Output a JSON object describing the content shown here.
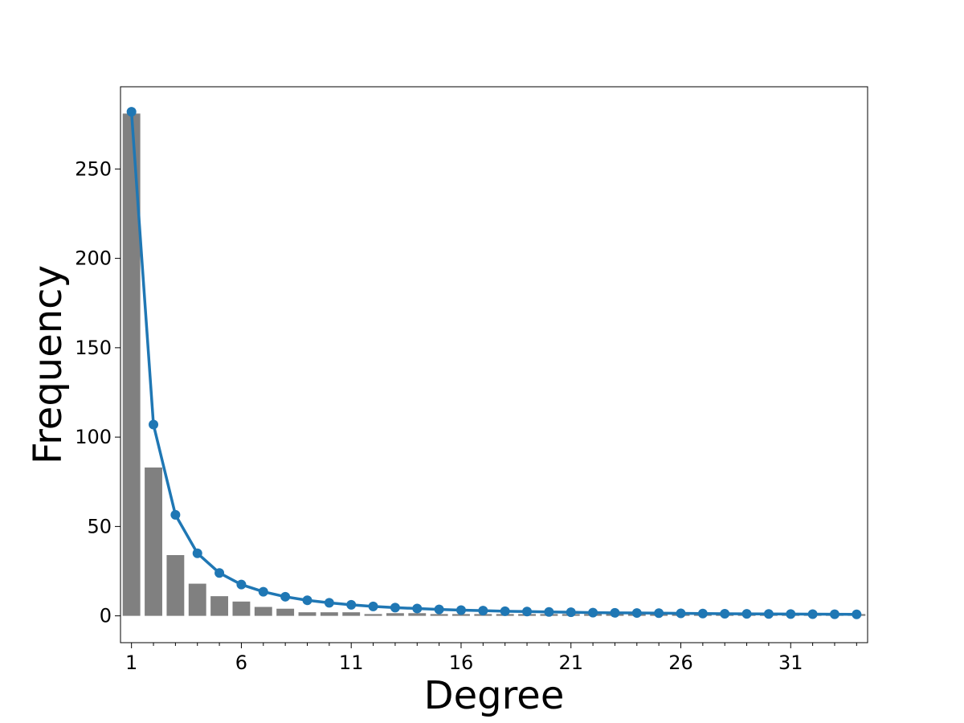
{
  "chart_data": {
    "type": "bar",
    "title": "",
    "xlabel": "Degree",
    "ylabel": "Frequency",
    "x": [
      1,
      2,
      3,
      4,
      5,
      6,
      7,
      8,
      9,
      10,
      11,
      12,
      13,
      14,
      15,
      16,
      17,
      18,
      19,
      20,
      21,
      22,
      23,
      24,
      25,
      26,
      27,
      28,
      29,
      30,
      31,
      32,
      33,
      34
    ],
    "xlim": [
      0.5,
      34.5
    ],
    "ylim": [
      -15,
      296
    ],
    "xticks": [
      1,
      6,
      11,
      16,
      21,
      26,
      31
    ],
    "xtick_labels": [
      "1",
      "6",
      "11",
      "16",
      "21",
      "26",
      "31"
    ],
    "yticks": [
      0,
      50,
      100,
      150,
      200,
      250
    ],
    "ytick_labels": [
      "0",
      "50",
      "100",
      "150",
      "200",
      "250"
    ],
    "grid": false,
    "series": [
      {
        "type": "bar",
        "color": "#808080",
        "values": [
          281,
          83,
          34,
          18,
          11,
          8,
          5,
          4,
          2,
          2,
          2,
          1,
          1.5,
          1.5,
          1,
          1,
          1,
          1,
          1,
          1,
          1,
          1,
          1,
          1,
          1,
          1,
          1,
          1,
          1,
          1,
          1,
          1,
          1,
          1
        ]
      },
      {
        "type": "line",
        "color": "#1f77b4",
        "marker": "circle",
        "values": [
          282,
          107,
          56.5,
          35,
          24,
          17.5,
          13.5,
          10.7,
          8.7,
          7.3,
          6.2,
          5.3,
          4.6,
          4.1,
          3.6,
          3.2,
          2.9,
          2.6,
          2.4,
          2.2,
          2.0,
          1.8,
          1.7,
          1.6,
          1.5,
          1.4,
          1.3,
          1.2,
          1.1,
          1.05,
          1.0,
          0.95,
          0.9,
          0.85
        ]
      }
    ]
  }
}
